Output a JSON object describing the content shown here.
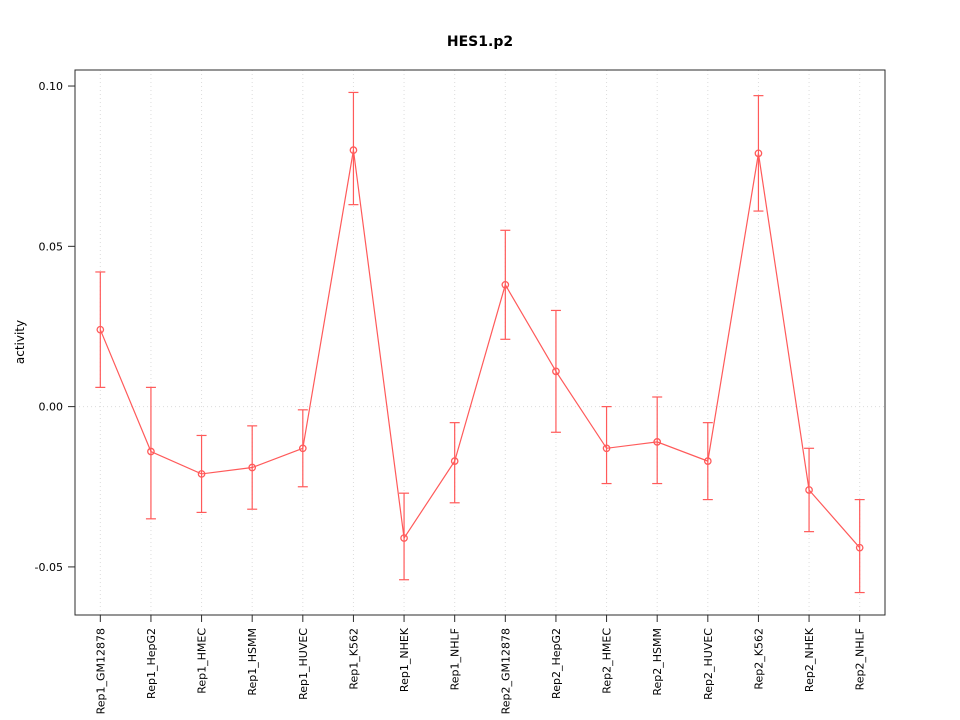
{
  "chart": {
    "title": "HES1.p2",
    "ylabel": "activity"
  },
  "chart_data": {
    "type": "line",
    "title": "HES1.p2",
    "xlabel": "",
    "ylabel": "activity",
    "ylim": [
      -0.065,
      0.105
    ],
    "yticks": [
      -0.05,
      0.0,
      0.05,
      0.1
    ],
    "legend": "none",
    "grid": "dotted vertical gridline at each category; dotted horizontal line at y=0",
    "series_color": "#FF5A5A",
    "grid_color": "#DCDCDC",
    "point_style": "open-circle",
    "error_bars": true,
    "categories": [
      "Rep1_GM12878",
      "Rep1_HepG2",
      "Rep1_HMEC",
      "Rep1_HSMM",
      "Rep1_HUVEC",
      "Rep1_K562",
      "Rep1_NHEK",
      "Rep1_NHLF",
      "Rep2_GM12878",
      "Rep2_HepG2",
      "Rep2_HMEC",
      "Rep2_HSMM",
      "Rep2_HUVEC",
      "Rep2_K562",
      "Rep2_NHEK",
      "Rep2_NHLF"
    ],
    "values": [
      0.024,
      -0.014,
      -0.021,
      -0.019,
      -0.013,
      0.08,
      -0.041,
      -0.017,
      0.038,
      0.011,
      -0.013,
      -0.011,
      -0.017,
      0.079,
      -0.026,
      -0.044
    ],
    "error_low": [
      0.006,
      -0.035,
      -0.033,
      -0.032,
      -0.025,
      0.063,
      -0.054,
      -0.03,
      0.021,
      -0.008,
      -0.024,
      -0.024,
      -0.029,
      0.061,
      -0.039,
      -0.058
    ],
    "error_high": [
      0.042,
      0.006,
      -0.009,
      -0.006,
      -0.001,
      0.098,
      -0.027,
      -0.005,
      0.055,
      0.03,
      0.0,
      0.003,
      -0.005,
      0.097,
      -0.013,
      -0.029
    ]
  }
}
